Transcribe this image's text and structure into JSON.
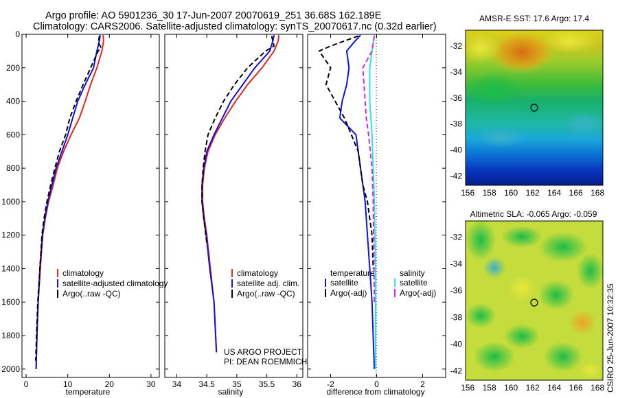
{
  "titles": {
    "line1": "Argo profile: AO 5901236_30 17-Jun-2007 20070619_251 36.68S 162.189E",
    "line2": "Climatology: CARS2006. Satellite-adjusted climatology: synTS_20070617.nc (0.32d earlier)"
  },
  "side_label": "CSIRO 25-Jun-2007 10:32:35",
  "project_label": {
    "line1": "US ARGO PROJECT",
    "line2": "PI: DEAN ROEMMICH"
  },
  "colors": {
    "climatology": "#e8241c",
    "satellite": "#1010e0",
    "argo": "#000000",
    "sal_satellite": "#22e8f0",
    "sal_argo": "#e020e0"
  },
  "chart_data": [
    {
      "type": "line",
      "name": "temperature",
      "xlabel": "temperature",
      "xlim": [
        -1,
        32
      ],
      "ylim": [
        2050,
        0
      ],
      "xticks": [
        0,
        10,
        20,
        30
      ],
      "yticks": [
        0,
        200,
        400,
        600,
        800,
        1000,
        1200,
        1400,
        1600,
        1800,
        2000
      ],
      "legend": [
        "climatology",
        "satellite-adjusted climatology",
        "Argo(..raw -QC)"
      ],
      "series": [
        {
          "name": "climatology",
          "color": "#e8241c",
          "dash": "",
          "x": [
            18.5,
            18.6,
            18.2,
            17.0,
            15.5,
            14.2,
            12.8,
            10.8,
            9.0,
            7.5,
            6.5,
            5.4,
            4.6,
            4.0,
            3.4,
            2.9,
            2.6,
            2.4
          ],
          "y": [
            5,
            40,
            100,
            200,
            300,
            400,
            500,
            600,
            700,
            800,
            900,
            1000,
            1100,
            1200,
            1400,
            1600,
            1800,
            2000
          ]
        },
        {
          "name": "satellite-adjusted climatology",
          "color": "#1010e0",
          "dash": "",
          "x": [
            17.8,
            17.6,
            17.0,
            16.2,
            14.2,
            12.4,
            11.2,
            10.0,
            8.6,
            7.2,
            6.2,
            5.2,
            4.5,
            3.9,
            3.3,
            2.9,
            2.6,
            2.4
          ],
          "y": [
            5,
            40,
            100,
            200,
            300,
            400,
            500,
            600,
            700,
            800,
            900,
            1000,
            1100,
            1200,
            1400,
            1600,
            1800,
            2000
          ]
        },
        {
          "name": "Argo(..raw -QC)",
          "color": "#000000",
          "dash": "7,4",
          "x": [
            17.6,
            17.4,
            18.0,
            17.3,
            15.5,
            13.7,
            12.0,
            10.5,
            9.5,
            8.0,
            6.9,
            5.9,
            5.0,
            4.3,
            3.8,
            3.3,
            2.8,
            2.5,
            2.3
          ],
          "y": [
            10,
            50,
            80,
            100,
            200,
            300,
            400,
            500,
            600,
            700,
            800,
            900,
            1000,
            1100,
            1200,
            1400,
            1600,
            1800,
            1950
          ]
        }
      ]
    },
    {
      "type": "line",
      "name": "salinity",
      "xlabel": "salinity",
      "xlim": [
        33.8,
        36.1
      ],
      "ylim": [
        2050,
        0
      ],
      "xticks": [
        34,
        34.5,
        35,
        35.5,
        36
      ],
      "yticks": [
        0,
        200,
        400,
        600,
        800,
        1000,
        1200,
        1400,
        1600,
        1800,
        2000
      ],
      "legend": [
        "climatology",
        "satellite adj. clim.",
        "Argo(..raw -QC)"
      ],
      "series": [
        {
          "name": "climatology",
          "color": "#e8241c",
          "dash": "",
          "x": [
            35.7,
            35.69,
            35.62,
            35.42,
            35.18,
            34.98,
            34.8,
            34.64,
            34.52,
            34.46,
            34.43,
            34.43,
            34.46,
            34.5,
            34.56,
            34.62,
            34.66
          ],
          "y": [
            5,
            40,
            100,
            200,
            300,
            400,
            500,
            600,
            700,
            800,
            900,
            1000,
            1100,
            1200,
            1400,
            1600,
            1900
          ]
        },
        {
          "name": "satellite adj. clim.",
          "color": "#1010e0",
          "dash": "",
          "x": [
            35.62,
            35.6,
            35.55,
            35.3,
            35.1,
            34.9,
            34.76,
            34.62,
            34.5,
            34.45,
            34.42,
            34.42,
            34.45,
            34.49,
            34.55,
            34.62,
            34.66
          ],
          "y": [
            5,
            40,
            100,
            200,
            300,
            400,
            500,
            600,
            700,
            800,
            900,
            1000,
            1100,
            1200,
            1400,
            1600,
            1900
          ]
        },
        {
          "name": "Argo(..raw -QC)",
          "color": "#000000",
          "dash": "7,4",
          "x": [
            35.58,
            35.62,
            35.48,
            35.18,
            34.96,
            34.78,
            34.64,
            34.52,
            34.47,
            34.44,
            34.42,
            34.42,
            34.45,
            34.5
          ],
          "y": [
            10,
            70,
            100,
            200,
            300,
            400,
            500,
            600,
            700,
            800,
            900,
            1000,
            1100,
            1250
          ]
        }
      ]
    },
    {
      "type": "line",
      "name": "difference",
      "xlabel": "difference from climatology",
      "xlim": [
        -3,
        3
      ],
      "ylim": [
        2050,
        0
      ],
      "xticks": [
        -2,
        0,
        2
      ],
      "yticks": [
        0,
        200,
        400,
        600,
        800,
        1000,
        1200,
        1400,
        1600,
        1800,
        2000
      ],
      "legend_titles": [
        "temperature",
        "salinity"
      ],
      "legend": [
        "satellite",
        "Argo(-adj)",
        "satellite",
        "Argo(-adj)"
      ],
      "series": [
        {
          "name": "temperature satellite",
          "color": "#1010e0",
          "dash": "",
          "x": [
            -0.7,
            -1.0,
            -1.3,
            -1.2,
            -1.3,
            -1.5,
            -1.6,
            -0.9,
            -0.7,
            -0.6,
            -0.5,
            -0.4,
            -0.3,
            -0.2,
            -0.1
          ],
          "y": [
            5,
            50,
            100,
            200,
            300,
            400,
            500,
            600,
            800,
            900,
            1000,
            1200,
            1400,
            1600,
            2000
          ]
        },
        {
          "name": "temperature Argo(-adj)",
          "color": "#000000",
          "dash": "7,4",
          "x": [
            -0.8,
            -2.0,
            -2.5,
            -2.0,
            -2.2,
            -1.8,
            -1.4,
            -0.8,
            -0.6,
            -0.4,
            -0.2,
            -0.15
          ],
          "y": [
            10,
            70,
            100,
            200,
            300,
            400,
            500,
            700,
            900,
            1000,
            1200,
            1400
          ]
        },
        {
          "name": "salinity satellite",
          "color": "#22e8f0",
          "dash": "",
          "x": [
            -0.1,
            -0.2,
            -0.3,
            -0.3,
            -0.25,
            -0.2,
            -0.15,
            -0.1,
            -0.05,
            -0.05
          ],
          "y": [
            5,
            100,
            200,
            400,
            500,
            600,
            800,
            1000,
            1400,
            2000
          ]
        },
        {
          "name": "salinity Argo(-adj)",
          "color": "#e020e0",
          "dash": "7,4",
          "x": [
            -0.1,
            -0.2,
            -0.6,
            -0.5,
            -0.45,
            -0.35,
            -0.2,
            -0.15,
            -0.1
          ],
          "y": [
            10,
            100,
            200,
            400,
            500,
            600,
            800,
            1000,
            1600
          ]
        }
      ]
    },
    {
      "type": "heatmap",
      "name": "sst_map",
      "title": "AMSR-E SST: 17.6 Argo: 17.4",
      "xlim": [
        155.8,
        168.5
      ],
      "ylim": [
        -42.7,
        -30.8
      ],
      "xticks": [
        156,
        158,
        160,
        162,
        164,
        166,
        168
      ],
      "yticks": [
        -32,
        -34,
        -36,
        -38,
        -40,
        -42
      ],
      "argo_position": {
        "lon": 162.189,
        "lat": -36.68
      }
    },
    {
      "type": "heatmap",
      "name": "sla_map",
      "title": "Altimetric SLA: -0.065 Argo: -0.059",
      "xlim": [
        155.8,
        168.5
      ],
      "ylim": [
        -42.7,
        -30.8
      ],
      "xticks": [
        156,
        158,
        160,
        162,
        164,
        166,
        168
      ],
      "yticks": [
        -32,
        -34,
        -36,
        -38,
        -40,
        -42
      ],
      "argo_position": {
        "lon": 162.189,
        "lat": -36.68
      }
    }
  ]
}
